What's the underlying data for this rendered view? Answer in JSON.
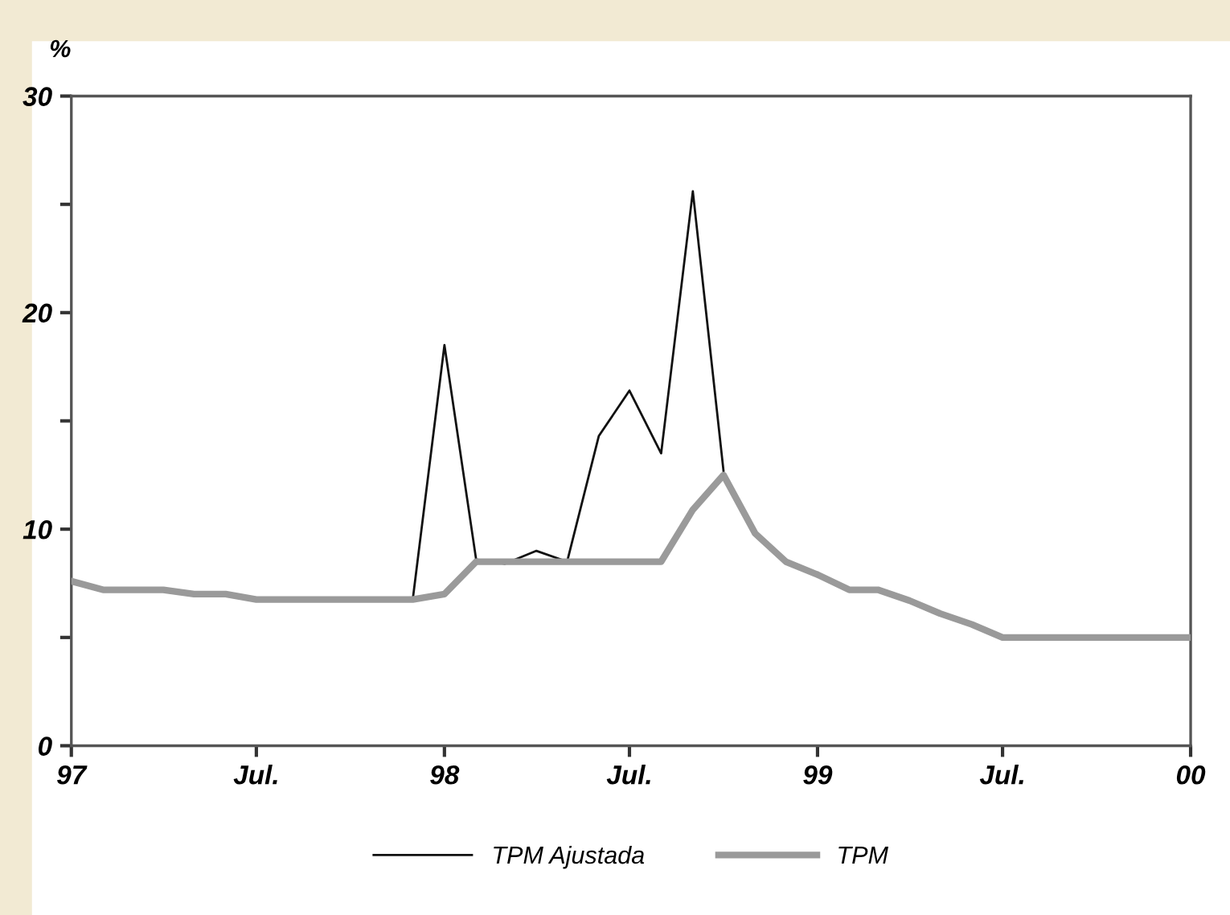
{
  "chart_data": {
    "type": "line",
    "ylabel": "%",
    "x": [
      "1997-01",
      "1997-02",
      "1997-03",
      "1997-04",
      "1997-05",
      "1997-06",
      "1997-07",
      "1997-08",
      "1997-09",
      "1997-10",
      "1997-11",
      "1997-12",
      "1998-01",
      "1998-02",
      "1998-03",
      "1998-04",
      "1998-05",
      "1998-06",
      "1998-07",
      "1998-08",
      "1998-09",
      "1998-10",
      "1998-11",
      "1998-12",
      "1999-01",
      "1999-02",
      "1999-03",
      "1999-04",
      "1999-05",
      "1999-06",
      "1999-07",
      "1999-08",
      "1999-09",
      "1999-10",
      "1999-11",
      "1999-12",
      "2000-01"
    ],
    "series": [
      {
        "name": "TPM Ajustada",
        "color": "#111111",
        "values": [
          null,
          null,
          null,
          null,
          null,
          null,
          null,
          null,
          null,
          null,
          null,
          6.75,
          18.5,
          8.6,
          8.4,
          9.0,
          8.5,
          14.3,
          16.4,
          13.5,
          25.6,
          12.7,
          null,
          null,
          null,
          null,
          null,
          null,
          null,
          null,
          null,
          null,
          null,
          null,
          null,
          null,
          null
        ]
      },
      {
        "name": "TPM",
        "color": "#9a9a9a",
        "values": [
          7.6,
          7.2,
          7.2,
          7.2,
          7.0,
          7.0,
          6.75,
          6.75,
          6.75,
          6.75,
          6.75,
          6.75,
          7.0,
          8.5,
          8.5,
          8.5,
          8.5,
          8.5,
          8.5,
          8.5,
          10.9,
          12.5,
          9.8,
          8.5,
          7.9,
          7.2,
          7.2,
          6.7,
          6.1,
          5.6,
          5.0,
          5.0,
          5.0,
          5.0,
          5.0,
          5.0,
          5.0
        ]
      }
    ],
    "xlim": [
      "1997-01",
      "2000-01"
    ],
    "xticks": [
      {
        "value": "1997-01",
        "label": "97"
      },
      {
        "value": "1997-07",
        "label": "Jul."
      },
      {
        "value": "1998-01",
        "label": "98"
      },
      {
        "value": "1998-07",
        "label": "Jul."
      },
      {
        "value": "1999-01",
        "label": "99"
      },
      {
        "value": "1999-07",
        "label": "Jul."
      },
      {
        "value": "2000-01",
        "label": "00"
      }
    ],
    "ylim": [
      0,
      30
    ],
    "yticks": [
      0,
      {
        "value": 5,
        "label": null
      },
      10,
      {
        "value": 15,
        "label": null
      },
      20,
      {
        "value": 25,
        "label": null
      },
      30
    ],
    "legend": "bottom",
    "marker": "none",
    "line_style": "solid",
    "grid": false
  }
}
